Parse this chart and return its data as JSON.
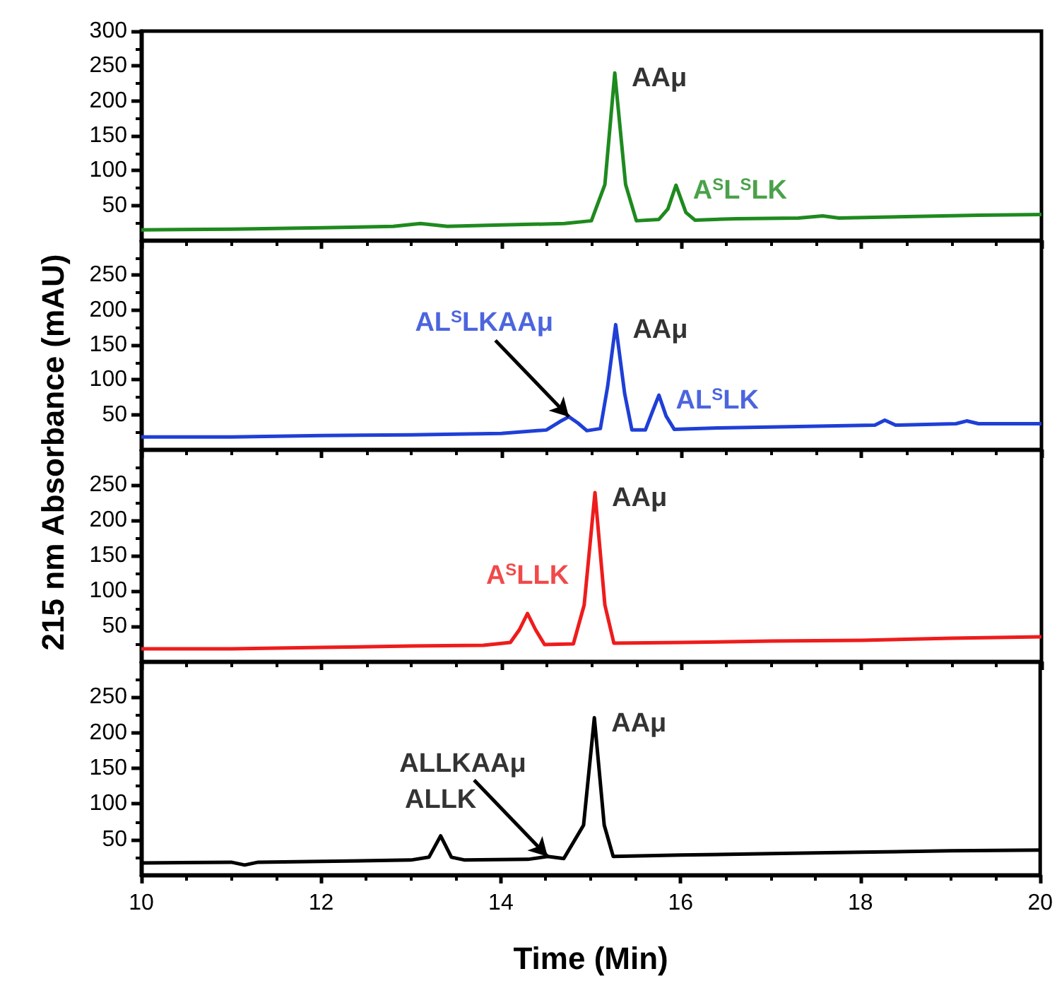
{
  "chart_data": [
    {
      "type": "line",
      "ylabel": "215 nm Absorbance (mAU)",
      "xlim": [
        10,
        20
      ],
      "xticks": [
        10,
        12,
        14,
        16,
        18,
        20
      ],
      "ylim": [
        0,
        300
      ],
      "yticks": [
        50,
        100,
        150,
        200,
        250,
        300
      ],
      "tick_labels": "y",
      "series": [
        {
          "color": "#1e8a1e",
          "x": [
            10,
            11,
            12,
            12.8,
            13.1,
            13.4,
            14,
            14.7,
            15.0,
            15.15,
            15.26,
            15.38,
            15.5,
            15.75,
            15.85,
            15.94,
            16.05,
            16.15,
            16.6,
            17.3,
            17.57,
            17.75,
            18.5,
            19.3,
            20
          ],
          "values": [
            15,
            16,
            18,
            20,
            24,
            20,
            22,
            24,
            28,
            80,
            240,
            80,
            28,
            30,
            45,
            79,
            40,
            29,
            31,
            32,
            35,
            32,
            34,
            36,
            37
          ]
        }
      ],
      "annotations": [
        {
          "text": "AAμ",
          "x": 15.26,
          "y": 240
        },
        {
          "text": "A$^{S}$L$^{S}$LK",
          "x": 15.94,
          "y": 79
        }
      ]
    },
    {
      "type": "line",
      "xlim": [
        10,
        20
      ],
      "xticks": [
        10,
        12,
        14,
        16,
        18,
        20
      ],
      "ylim": [
        0,
        300
      ],
      "yticks": [
        50,
        100,
        150,
        200,
        250
      ],
      "tick_labels": "y",
      "series": [
        {
          "color": "#1f3fd6",
          "x": [
            10,
            11,
            12,
            13,
            14,
            14.5,
            14.65,
            14.75,
            14.85,
            14.95,
            15.1,
            15.18,
            15.27,
            15.37,
            15.45,
            15.6,
            15.68,
            15.75,
            15.83,
            15.92,
            16.4,
            17.3,
            18.15,
            18.26,
            18.38,
            19.05,
            19.17,
            19.3,
            20
          ],
          "values": [
            18,
            18,
            20,
            21,
            23,
            28,
            40,
            47,
            38,
            27,
            30,
            90,
            179,
            80,
            28,
            28,
            55,
            78,
            48,
            29,
            31,
            33,
            35,
            42,
            35,
            37,
            41,
            37,
            37
          ]
        }
      ],
      "annotations": [
        {
          "text": "AL$^{S}$LKAAμ",
          "x": 14.75,
          "y": 47
        },
        {
          "text": "AAμ",
          "x": 15.27,
          "y": 179
        },
        {
          "text": "AL$^{S}$LK",
          "x": 15.75,
          "y": 78
        }
      ]
    },
    {
      "type": "line",
      "xlim": [
        10,
        20
      ],
      "xticks": [
        10,
        12,
        14,
        16,
        18,
        20
      ],
      "ylim": [
        0,
        300
      ],
      "yticks": [
        50,
        100,
        150,
        200,
        250
      ],
      "tick_labels": "y",
      "series": [
        {
          "color": "#ee1c1c",
          "x": [
            10,
            11,
            12,
            13,
            13.8,
            14.1,
            14.2,
            14.29,
            14.38,
            14.48,
            14.8,
            14.92,
            15.04,
            15.15,
            15.25,
            16,
            17,
            18,
            19,
            20
          ],
          "values": [
            18,
            18,
            20,
            22,
            23,
            27,
            45,
            68,
            45,
            24,
            25,
            80,
            239,
            80,
            26,
            27,
            29,
            30,
            33,
            35
          ]
        }
      ],
      "annotations": [
        {
          "text": "A$^{S}$LLK",
          "x": 14.29,
          "y": 68
        },
        {
          "text": "AAμ",
          "x": 15.04,
          "y": 239
        }
      ]
    },
    {
      "type": "line",
      "xlabel": "Time (Min)",
      "xlim": [
        10,
        20
      ],
      "xticks": [
        10,
        12,
        14,
        16,
        18,
        20
      ],
      "ylim": [
        0,
        300
      ],
      "yticks": [
        50,
        100,
        150,
        200,
        250
      ],
      "series": [
        {
          "color": "#000000",
          "x": [
            10,
            11,
            11.15,
            11.3,
            12,
            13,
            13.2,
            13.33,
            13.45,
            13.6,
            14.3,
            14.52,
            14.7,
            14.92,
            15.04,
            15.15,
            15.25,
            16,
            17,
            18,
            19,
            20
          ],
          "values": [
            17,
            18,
            14,
            18,
            19,
            21,
            25,
            55,
            25,
            21,
            22,
            26,
            23,
            70,
            221,
            70,
            26,
            28,
            30,
            32,
            34,
            35
          ]
        }
      ],
      "annotations": [
        {
          "text": "ALLK",
          "x": 13.33,
          "y": 55
        },
        {
          "text": "ALLKAAμ",
          "x": 14.52,
          "y": 26
        },
        {
          "text": "AAμ",
          "x": 15.04,
          "y": 221
        }
      ]
    }
  ]
}
